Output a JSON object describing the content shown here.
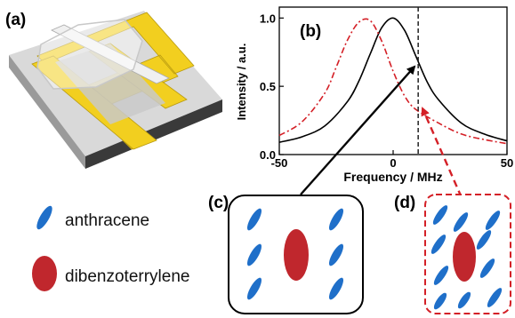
{
  "panels": {
    "a": "(a)",
    "b": "(b)",
    "c": "(c)",
    "d": "(d)"
  },
  "legend": {
    "anthracene": "anthracene",
    "dibenzoterrylene": "dibenzoterrylene"
  },
  "colors": {
    "anthracene": "#1f6fc9",
    "dibenzoterrylene": "#c0272d",
    "gold": "#f2cf1f",
    "black_curve": "#000000",
    "red_curve": "#d42027"
  },
  "chart_data": {
    "type": "line",
    "xlabel": "Frequency / MHz",
    "ylabel": "Intensity / a.u.",
    "xlim": [
      -50,
      50
    ],
    "ylim": [
      0,
      1.08
    ],
    "x_ticks": [
      -50,
      0,
      50
    ],
    "x_tick_labels": [
      "-50",
      "0",
      "50"
    ],
    "y_ticks": [
      0.0,
      0.5,
      1.0
    ],
    "y_tick_labels": [
      "0.0",
      "0.5",
      "1.0"
    ],
    "vline_x": 11,
    "series": [
      {
        "style": "solid",
        "color": "#000000",
        "x": [
          -50,
          -40,
          -30,
          -20,
          -15,
          -10,
          -5,
          0,
          5,
          10,
          15,
          20,
          30,
          40,
          50
        ],
        "values": [
          0.09,
          0.13,
          0.21,
          0.39,
          0.54,
          0.74,
          0.93,
          1.0,
          0.91,
          0.72,
          0.53,
          0.4,
          0.23,
          0.15,
          0.1
        ]
      },
      {
        "style": "dash-dot",
        "color": "#d42027",
        "x": [
          -50,
          -40,
          -30,
          -25,
          -20,
          -15,
          -10,
          -5,
          0,
          5,
          10,
          20,
          30,
          40,
          50
        ],
        "values": [
          0.14,
          0.24,
          0.45,
          0.64,
          0.84,
          0.97,
          0.98,
          0.83,
          0.61,
          0.43,
          0.33,
          0.23,
          0.15,
          0.11,
          0.08
        ]
      }
    ]
  }
}
